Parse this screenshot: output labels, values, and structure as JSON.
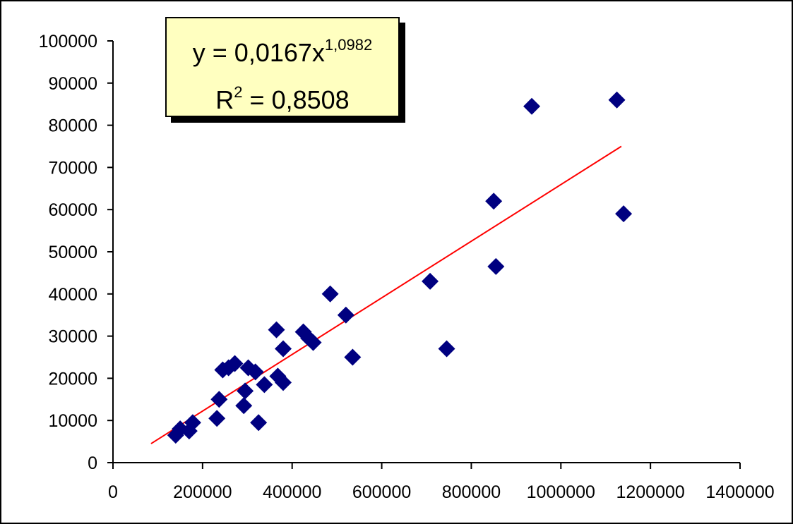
{
  "chart_data": {
    "type": "scatter",
    "title": "",
    "xlabel": "",
    "ylabel": "",
    "xlim": [
      0,
      1400000
    ],
    "ylim": [
      0,
      100000
    ],
    "x_ticks": [
      0,
      200000,
      400000,
      600000,
      800000,
      1000000,
      1200000,
      1400000
    ],
    "y_ticks": [
      0,
      10000,
      20000,
      30000,
      40000,
      50000,
      60000,
      70000,
      80000,
      90000,
      100000
    ],
    "x_tick_labels": [
      "0",
      "200000",
      "400000",
      "600000",
      "800000",
      "1000000",
      "1200000",
      "1400000"
    ],
    "y_tick_labels": [
      "0",
      "10000",
      "20000",
      "30000",
      "40000",
      "50000",
      "60000",
      "70000",
      "80000",
      "90000",
      "100000"
    ],
    "grid": false,
    "legend": "none",
    "marker": "diamond",
    "marker_color": "#000080",
    "points": [
      {
        "x": 140000,
        "y": 6500
      },
      {
        "x": 150000,
        "y": 8000
      },
      {
        "x": 170000,
        "y": 7500
      },
      {
        "x": 178000,
        "y": 9500
      },
      {
        "x": 232000,
        "y": 10500
      },
      {
        "x": 237000,
        "y": 15000
      },
      {
        "x": 245000,
        "y": 22000
      },
      {
        "x": 258000,
        "y": 22500
      },
      {
        "x": 272000,
        "y": 23500
      },
      {
        "x": 292000,
        "y": 13500
      },
      {
        "x": 295000,
        "y": 17000
      },
      {
        "x": 302000,
        "y": 22500
      },
      {
        "x": 318000,
        "y": 21500
      },
      {
        "x": 325000,
        "y": 9500
      },
      {
        "x": 338000,
        "y": 18500
      },
      {
        "x": 365000,
        "y": 31500
      },
      {
        "x": 368000,
        "y": 20500
      },
      {
        "x": 380000,
        "y": 19000
      },
      {
        "x": 380000,
        "y": 27000
      },
      {
        "x": 425000,
        "y": 31000
      },
      {
        "x": 437000,
        "y": 29500
      },
      {
        "x": 447000,
        "y": 28500
      },
      {
        "x": 485000,
        "y": 40000
      },
      {
        "x": 520000,
        "y": 35000
      },
      {
        "x": 535000,
        "y": 25000
      },
      {
        "x": 708000,
        "y": 43000
      },
      {
        "x": 745000,
        "y": 27000
      },
      {
        "x": 850000,
        "y": 62000
      },
      {
        "x": 855000,
        "y": 46500
      },
      {
        "x": 935000,
        "y": 84500
      },
      {
        "x": 1125000,
        "y": 86000
      },
      {
        "x": 1140000,
        "y": 59000
      }
    ],
    "trendline": {
      "type": "power",
      "coefficient": 0.0167,
      "exponent": 1.0982,
      "x_range": [
        85000,
        1135000
      ],
      "color": "#ff0000",
      "equation_label": {
        "y_prefix": "y = 0,0167x",
        "exponent": "1,0982",
        "r_prefix": "R",
        "r_power": "2",
        "r_value": " = 0,8508"
      }
    }
  }
}
